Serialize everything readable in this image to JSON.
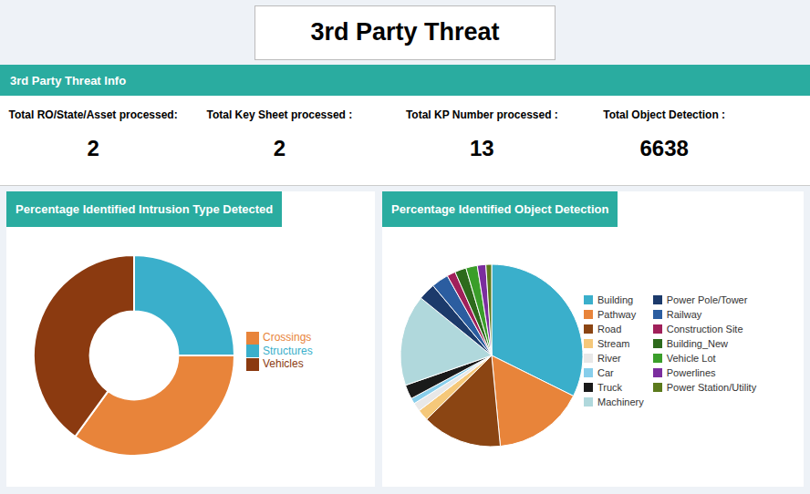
{
  "title": "3rd Party Threat",
  "subtitle": "3rd Party Threat Info",
  "annotations": [
    {
      "label": "Total RO/State/Asset processed:",
      "value": 2
    },
    {
      "label": "Total Key Sheet processed :",
      "value": 2
    },
    {
      "label": "Total KP Number processed :",
      "value": 13
    },
    {
      "label": "Total Object Detection :",
      "value": 6638
    }
  ],
  "chart_data": [
    {
      "type": "donut",
      "title": "Percentage Identified Intrusion Type Detected",
      "categories": [
        "Structures",
        "Crossings",
        "Vehicles"
      ],
      "values": [
        25,
        35,
        40
      ],
      "colors": [
        "#3AAFCB",
        "#E8843A",
        "#8B3A10"
      ],
      "legend": "right"
    },
    {
      "type": "pie",
      "title": "Percentage Identified Object Detection",
      "categories": [
        "Building",
        "Pathway",
        "Road",
        "Stream",
        "River",
        "Car",
        "Truck",
        "Machinery",
        "Power Pole/Tower",
        "Railway",
        "Construction Site",
        "Building_New",
        "Vehicle Lot",
        "Powerlines",
        "Power Station/Utility"
      ],
      "values": [
        32,
        16,
        14,
        2,
        1.5,
        1,
        2.5,
        16,
        3,
        3,
        1.5,
        2,
        2,
        1.5,
        1
      ],
      "colors": [
        "#3AAFCB",
        "#E8843A",
        "#8B4513",
        "#F5C87A",
        "#E8E8E8",
        "#87CEEB",
        "#1A1A1A",
        "#B0D8DC",
        "#1C3A6B",
        "#2B5DA0",
        "#A0205A",
        "#2D6A1C",
        "#3A9E2A",
        "#7B2D9E",
        "#5B7A1C"
      ],
      "legend": "right"
    }
  ]
}
